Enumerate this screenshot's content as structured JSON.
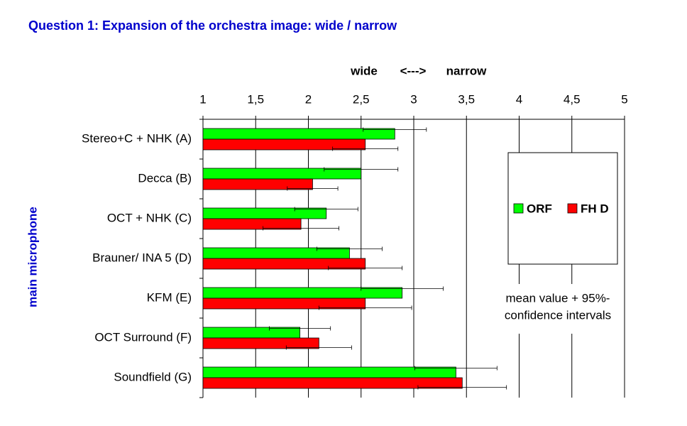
{
  "chart_data": {
    "type": "hbar",
    "title": "Question 1: Expansion of the orchestra image: wide / narrow",
    "x_labels": [
      "wide",
      "<--->",
      "narrow"
    ],
    "y_label": "main microphone",
    "annotation": [
      "mean value + 95%-",
      "confidence intervals"
    ],
    "categories": [
      "Stereo+C + NHK (A)",
      "Decca (B)",
      "OCT + NHK (C)",
      "Brauner/ INA 5 (D)",
      "KFM (E)",
      "OCT Surround (F)",
      "Soundfield (G)"
    ],
    "series": [
      {
        "name": "ORF",
        "color": "#00ff00",
        "values": [
          2.82,
          2.5,
          2.17,
          2.39,
          2.89,
          1.92,
          3.4
        ],
        "errors": [
          0.3,
          0.35,
          0.3,
          0.31,
          0.39,
          0.29,
          0.39
        ]
      },
      {
        "name": "FH D",
        "color": "#ff0000",
        "values": [
          2.54,
          2.04,
          1.93,
          2.54,
          2.54,
          2.1,
          3.46
        ],
        "errors": [
          0.31,
          0.24,
          0.36,
          0.35,
          0.44,
          0.31,
          0.42
        ]
      }
    ],
    "xlim": [
      1,
      5
    ],
    "xticks": [
      1,
      {
        "value": 1.5,
        "label": "1,5"
      },
      2,
      {
        "value": 2.5,
        "label": "2,5"
      },
      3,
      {
        "value": 3.5,
        "label": "3,5"
      },
      4,
      {
        "value": 4.5,
        "label": "4,5"
      },
      5
    ],
    "grid": true
  }
}
